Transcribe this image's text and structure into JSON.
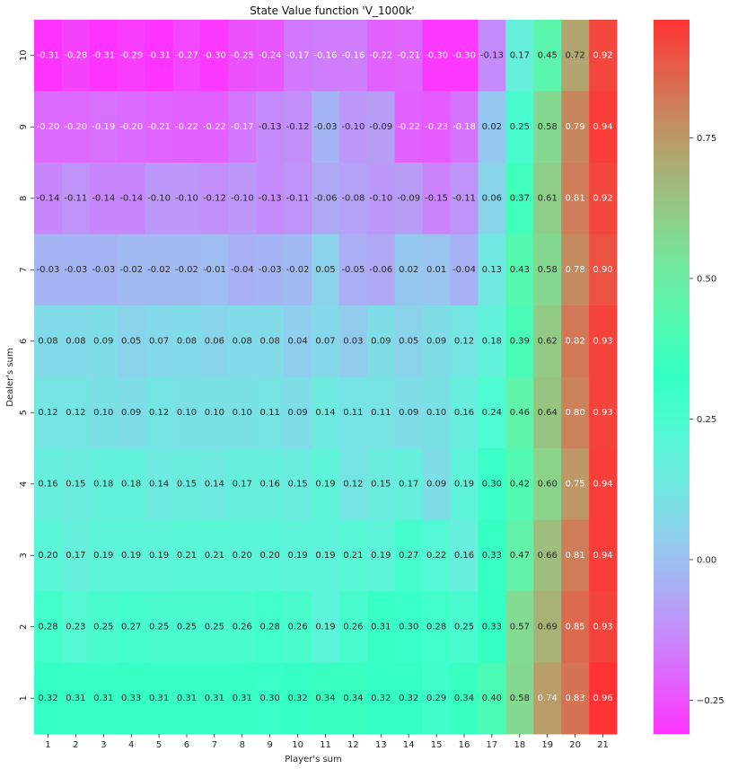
{
  "chart_data": {
    "type": "heatmap",
    "title": "State Value function 'V_1000k'",
    "xlabel": "Player's sum",
    "ylabel": "Dealer's sum",
    "x": [
      "1",
      "2",
      "3",
      "4",
      "5",
      "6",
      "7",
      "8",
      "9",
      "10",
      "11",
      "12",
      "13",
      "14",
      "15",
      "16",
      "17",
      "18",
      "19",
      "20",
      "21"
    ],
    "y": [
      "10",
      "9",
      "8",
      "7",
      "6",
      "5",
      "4",
      "3",
      "2",
      "1"
    ],
    "values": [
      [
        -0.31,
        -0.28,
        -0.31,
        -0.29,
        -0.31,
        -0.27,
        -0.3,
        -0.25,
        -0.24,
        -0.17,
        -0.16,
        -0.16,
        -0.22,
        -0.21,
        -0.3,
        -0.3,
        -0.13,
        0.17,
        0.45,
        0.72,
        0.92
      ],
      [
        -0.2,
        -0.2,
        -0.19,
        -0.2,
        -0.21,
        -0.22,
        -0.22,
        -0.17,
        -0.13,
        -0.12,
        -0.03,
        -0.1,
        -0.09,
        -0.22,
        -0.23,
        -0.18,
        0.02,
        0.25,
        0.58,
        0.79,
        0.94
      ],
      [
        -0.14,
        -0.11,
        -0.14,
        -0.14,
        -0.1,
        -0.1,
        -0.12,
        -0.1,
        -0.13,
        -0.11,
        -0.06,
        -0.08,
        -0.1,
        -0.09,
        -0.15,
        -0.11,
        0.06,
        0.37,
        0.61,
        0.81,
        0.92
      ],
      [
        -0.03,
        -0.03,
        -0.03,
        -0.02,
        -0.02,
        -0.02,
        -0.01,
        -0.04,
        -0.03,
        -0.02,
        0.05,
        -0.05,
        -0.06,
        0.02,
        0.01,
        -0.04,
        0.13,
        0.43,
        0.58,
        0.78,
        0.9
      ],
      [
        0.08,
        0.08,
        0.09,
        0.05,
        0.07,
        0.08,
        0.06,
        0.08,
        0.08,
        0.04,
        0.07,
        0.03,
        0.09,
        0.05,
        0.09,
        0.12,
        0.18,
        0.39,
        0.62,
        0.82,
        0.93
      ],
      [
        0.12,
        0.12,
        0.1,
        0.09,
        0.12,
        0.1,
        0.1,
        0.1,
        0.11,
        0.09,
        0.14,
        0.11,
        0.11,
        0.09,
        0.1,
        0.16,
        0.24,
        0.46,
        0.64,
        0.8,
        0.93
      ],
      [
        0.16,
        0.15,
        0.18,
        0.18,
        0.14,
        0.15,
        0.14,
        0.17,
        0.16,
        0.15,
        0.19,
        0.12,
        0.15,
        0.17,
        0.09,
        0.19,
        0.3,
        0.42,
        0.6,
        0.75,
        0.94
      ],
      [
        0.2,
        0.17,
        0.19,
        0.19,
        0.19,
        0.21,
        0.21,
        0.2,
        0.2,
        0.19,
        0.19,
        0.21,
        0.19,
        0.27,
        0.22,
        0.16,
        0.33,
        0.47,
        0.66,
        0.81,
        0.94
      ],
      [
        0.28,
        0.23,
        0.25,
        0.27,
        0.25,
        0.25,
        0.25,
        0.26,
        0.28,
        0.26,
        0.19,
        0.26,
        0.31,
        0.3,
        0.28,
        0.25,
        0.33,
        0.57,
        0.69,
        0.85,
        0.93
      ],
      [
        0.32,
        0.31,
        0.31,
        0.33,
        0.31,
        0.31,
        0.31,
        0.31,
        0.3,
        0.32,
        0.34,
        0.34,
        0.32,
        0.32,
        0.29,
        0.34,
        0.4,
        0.58,
        0.74,
        0.83,
        0.96
      ]
    ],
    "vmin": -0.31,
    "vmax": 0.96,
    "colormap": "rainbow",
    "colorbar": {
      "ticks": [
        -0.25,
        0.0,
        0.25,
        0.5,
        0.75
      ],
      "tick_labels": [
        "−0.25",
        "0.00",
        "0.25",
        "0.50",
        "0.75"
      ]
    },
    "annotation_format": "2 decimals",
    "legend": "colorbar right"
  }
}
